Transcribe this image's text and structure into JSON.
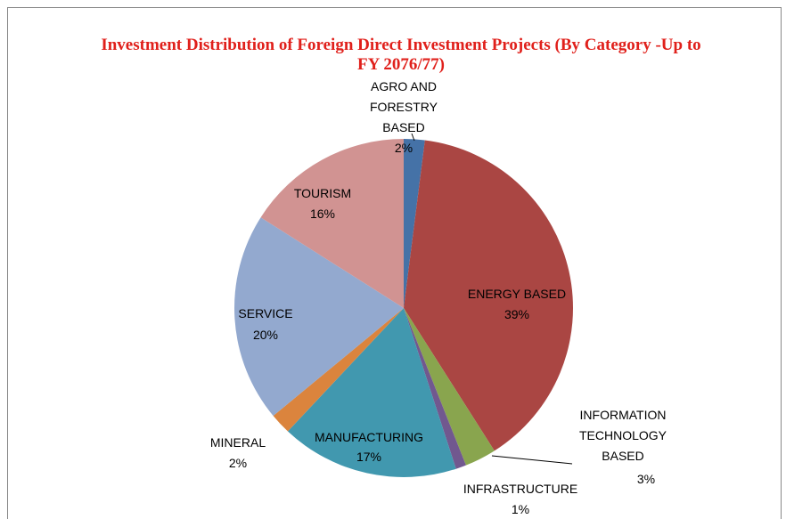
{
  "chart_data": {
    "type": "pie",
    "title": "Investment  Distribution of Foreign Direct Investment Projects (By Category -Up to FY 2076/77)",
    "categories": [
      "AGRO AND FORESTRY BASED",
      "ENERGY BASED",
      "INFORMATION TECHNOLOGY BASED",
      "INFRASTRUCTURE",
      "MANUFACTURING",
      "MINERAL",
      "SERVICE",
      "TOURISM"
    ],
    "values": [
      2,
      39,
      3,
      1,
      17,
      2,
      20,
      16
    ],
    "value_labels": [
      "2%",
      "39%",
      "3%",
      "1%",
      "17%",
      "2%",
      "20%",
      "16%"
    ],
    "colors": [
      "#4572a7",
      "#aa4643",
      "#89a54e",
      "#71588f",
      "#4198af",
      "#db843d",
      "#93a9cf",
      "#d19392"
    ]
  }
}
